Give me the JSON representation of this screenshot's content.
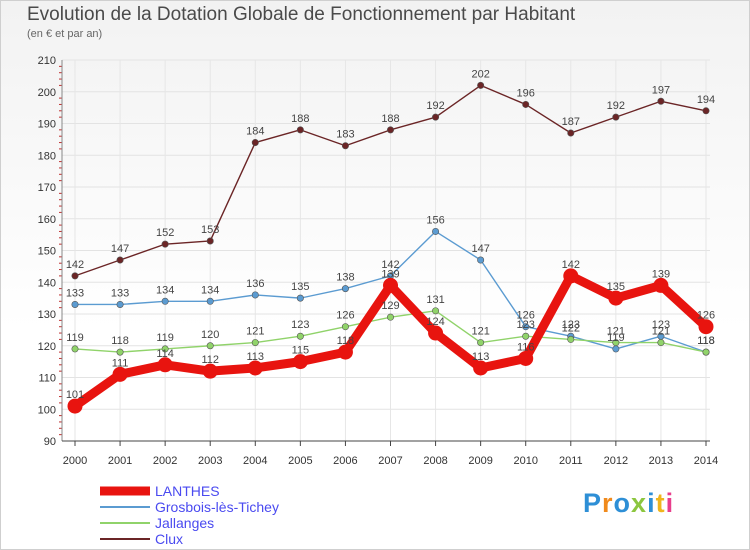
{
  "chart_data": {
    "type": "line",
    "title": "Evolution de la Dotation Globale de Fonctionnement par Habitant",
    "subtitle": "(en € et par an)",
    "xlabel": "",
    "ylabel": "",
    "categories": [
      "2000",
      "2001",
      "2002",
      "2003",
      "2004",
      "2005",
      "2006",
      "2007",
      "2008",
      "2009",
      "2010",
      "2011",
      "2012",
      "2013",
      "2014"
    ],
    "ylim": [
      90,
      210
    ],
    "yticks": [
      90,
      100,
      110,
      120,
      130,
      140,
      150,
      160,
      170,
      180,
      190,
      200,
      210
    ],
    "legend_position": "bottom-left",
    "series": [
      {
        "name": "LANTHES",
        "color": "#e8140f",
        "values": [
          101,
          111,
          114,
          112,
          113,
          115,
          118,
          139,
          124,
          113,
          116,
          142,
          135,
          139,
          126
        ]
      },
      {
        "name": "Grosbois-lès-Tichey",
        "color": "#5b9bd1",
        "values": [
          133,
          133,
          134,
          134,
          136,
          135,
          138,
          142,
          156,
          147,
          126,
          123,
          119,
          123,
          118
        ]
      },
      {
        "name": "Jallanges",
        "color": "#90d36a",
        "values": [
          119,
          118,
          119,
          120,
          121,
          123,
          126,
          129,
          131,
          121,
          123,
          122,
          121,
          121,
          118
        ]
      },
      {
        "name": "Clux",
        "color": "#6b2526",
        "values": [
          142,
          147,
          152,
          153,
          184,
          188,
          183,
          188,
          192,
          202,
          196,
          187,
          192,
          197,
          194
        ]
      }
    ]
  },
  "brand": {
    "letters": [
      "P",
      "r",
      "o",
      "x",
      "i",
      "t",
      "i"
    ],
    "colors": [
      "#2e8fd6",
      "#f08a1c",
      "#2e8fd6",
      "#8cc63f",
      "#2e8fd6",
      "#f0b51c",
      "#e83e8c"
    ]
  }
}
